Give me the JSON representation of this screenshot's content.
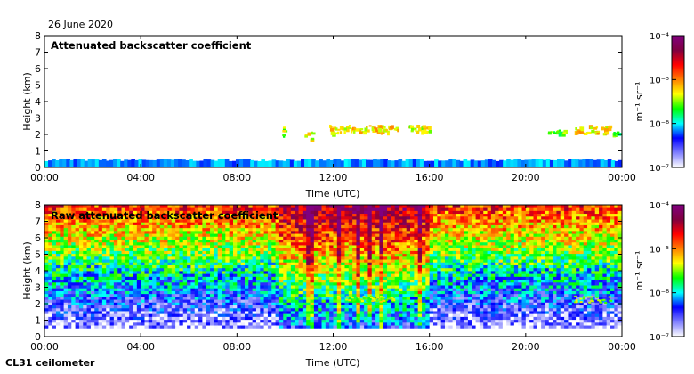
{
  "date_label": "26 June 2020",
  "instrument_label": "CL31 ceilometer",
  "colorbar": {
    "unit_label": "m⁻¹ sr⁻¹",
    "ticks": [
      "10⁻⁴",
      "10⁻⁵",
      "10⁻⁶",
      "10⁻⁷"
    ],
    "tick_values": [
      -4,
      -5,
      -6,
      -7
    ],
    "log_range": [
      -7,
      -4
    ],
    "colors": [
      "#ffffff",
      "#8080ff",
      "#0000ff",
      "#00ffff",
      "#00ff00",
      "#ffff00",
      "#ff8000",
      "#ff0000",
      "#800040",
      "#800080"
    ]
  },
  "chart_data": [
    {
      "type": "heatmap",
      "title": "Attenuated backscatter coefficient",
      "xlabel": "Time (UTC)",
      "ylabel": "Height (km)",
      "xlim": [
        0,
        24
      ],
      "ylim": [
        0,
        8
      ],
      "x_ticks": [
        0,
        4,
        8,
        12,
        16,
        20,
        24
      ],
      "x_tick_labels": [
        "00:00",
        "04:00",
        "08:00",
        "12:00",
        "16:00",
        "20:00",
        "00:00"
      ],
      "y_ticks": [
        0,
        1,
        2,
        3,
        4,
        5,
        6,
        7,
        8
      ],
      "y_tick_labels": [
        "0",
        "1",
        "2",
        "3",
        "4",
        "5",
        "6",
        "7",
        "8"
      ],
      "boundary_layer": {
        "height_km": 0.45,
        "log_value": -6.0
      },
      "features": [
        {
          "label": "cloud",
          "t_start": 9.7,
          "t_end": 10.0,
          "h_low": 1.9,
          "h_high": 2.5,
          "log_value": -5.7
        },
        {
          "label": "cloud",
          "t_start": 10.8,
          "t_end": 11.1,
          "h_low": 1.7,
          "h_high": 2.2,
          "log_value": -5.6
        },
        {
          "label": "cloud",
          "t_start": 11.8,
          "t_end": 14.7,
          "h_low": 2.1,
          "h_high": 2.6,
          "log_value": -5.5
        },
        {
          "label": "cloud",
          "t_start": 15.1,
          "t_end": 16.0,
          "h_low": 2.2,
          "h_high": 2.7,
          "log_value": -5.6
        },
        {
          "label": "cloud",
          "t_start": 20.9,
          "t_end": 21.6,
          "h_low": 2.1,
          "h_high": 2.3,
          "log_value": -5.8
        },
        {
          "label": "cloud",
          "t_start": 22.0,
          "t_end": 23.5,
          "h_low": 2.1,
          "h_high": 2.6,
          "log_value": -5.5
        },
        {
          "label": "cloud",
          "t_start": 23.6,
          "t_end": 24.0,
          "h_low": 2.0,
          "h_high": 2.2,
          "log_value": -5.9
        }
      ]
    },
    {
      "type": "heatmap",
      "title": "Raw attenuated backscatter coefficient",
      "xlabel": "Time (UTC)",
      "ylabel": "Height (km)",
      "xlim": [
        0,
        24
      ],
      "ylim": [
        0,
        8
      ],
      "x_ticks": [
        0,
        4,
        8,
        12,
        16,
        20,
        24
      ],
      "x_tick_labels": [
        "00:00",
        "04:00",
        "08:00",
        "12:00",
        "16:00",
        "20:00",
        "00:00"
      ],
      "y_ticks": [
        0,
        1,
        2,
        3,
        4,
        5,
        6,
        7,
        8
      ],
      "y_tick_labels": [
        "0",
        "1",
        "2",
        "3",
        "4",
        "5",
        "6",
        "7",
        "8"
      ],
      "noisy_period": [
        9.7,
        16.0
      ],
      "features": [
        {
          "label": "cloud",
          "t_start": 12.0,
          "t_end": 14.5,
          "h_low": 2.2,
          "h_high": 2.5,
          "log_value": -5.6
        },
        {
          "label": "cloud",
          "t_start": 22.0,
          "t_end": 23.5,
          "h_low": 2.1,
          "h_high": 2.5,
          "log_value": -5.6
        }
      ]
    }
  ]
}
